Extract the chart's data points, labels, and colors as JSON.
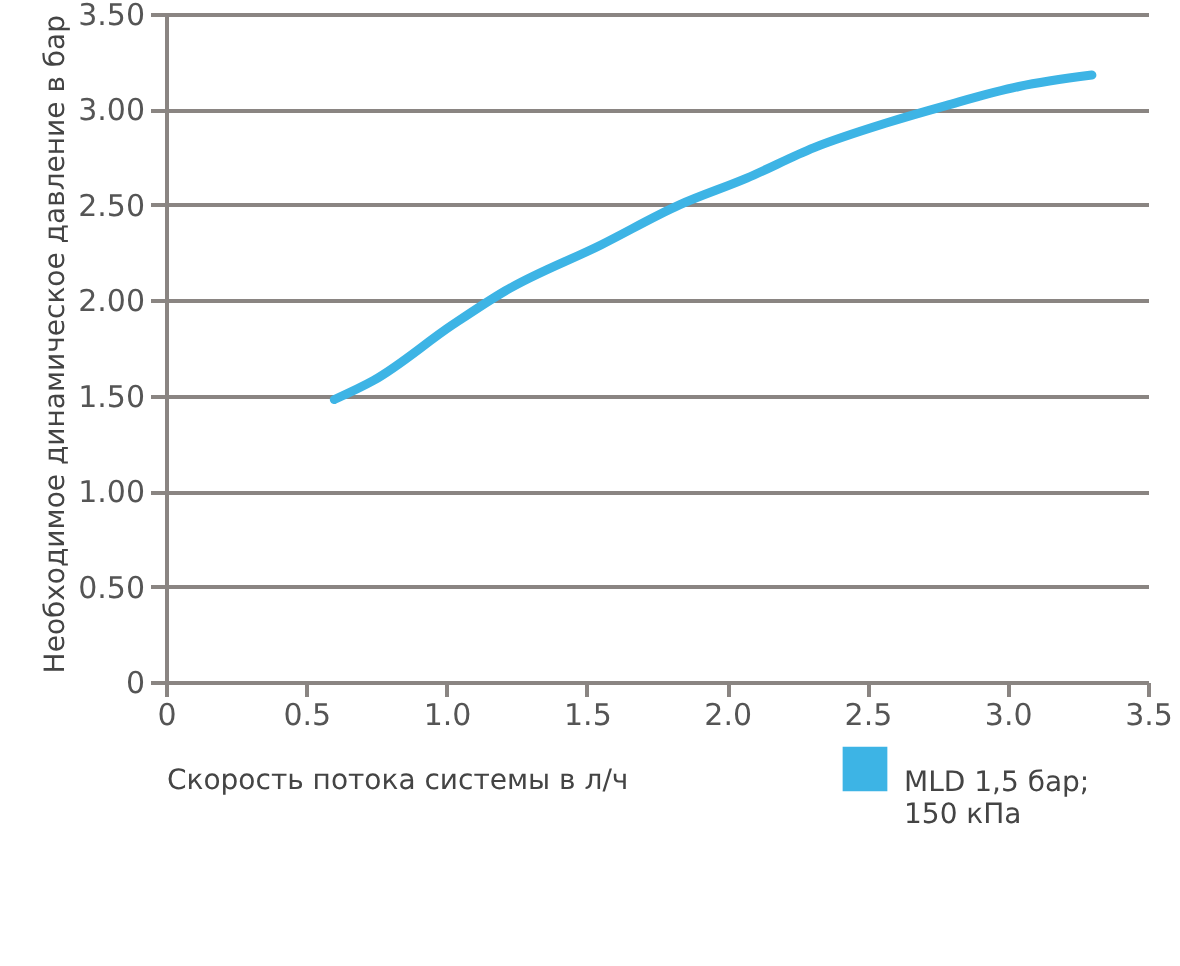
{
  "chart_data": {
    "type": "line",
    "xlabel": "Скорость потока системы в л/ч",
    "ylabel": "Необходимое динамическое давление в бар",
    "xlim": [
      0,
      3.5
    ],
    "xticks": [
      {
        "value": 0,
        "label": "0"
      },
      {
        "value": 0.5,
        "label": "0.5"
      },
      {
        "value": 1,
        "label": "1.0"
      },
      {
        "value": 1.5,
        "label": "1.5"
      },
      {
        "value": 2,
        "label": "2.0"
      },
      {
        "value": 2.5,
        "label": "2.5"
      },
      {
        "value": 3,
        "label": "3.0"
      },
      {
        "value": 3.5,
        "label": "3.5"
      }
    ],
    "ylim": [
      0,
      3.5
    ],
    "yticks": [
      {
        "value": 0,
        "label": "0"
      },
      {
        "value": 0.5,
        "label": "0.50"
      },
      {
        "value": 1,
        "label": "1.00"
      },
      {
        "value": 1.5,
        "label": "1.50"
      },
      {
        "value": 2,
        "label": "2.00"
      },
      {
        "value": 2.5,
        "label": "2.50"
      },
      {
        "value": 3,
        "label": "3.00"
      },
      {
        "value": 3.5,
        "label": "3.50"
      }
    ],
    "grid": "y",
    "legend": "bottom right",
    "line_style": "solid",
    "series": [
      {
        "name": "MLD 1,5 бар; 150 кПа",
        "color": "#3db4e5",
        "x": [
          0.6,
          0.74,
          1.02,
          1.21,
          1.55,
          1.83,
          2.07,
          2.31,
          2.57,
          2.78,
          3.04,
          3.3
        ],
        "values": [
          1.48,
          1.58,
          1.87,
          2.05,
          2.29,
          2.5,
          2.64,
          2.8,
          2.93,
          3.02,
          3.12,
          3.18
        ]
      }
    ]
  }
}
